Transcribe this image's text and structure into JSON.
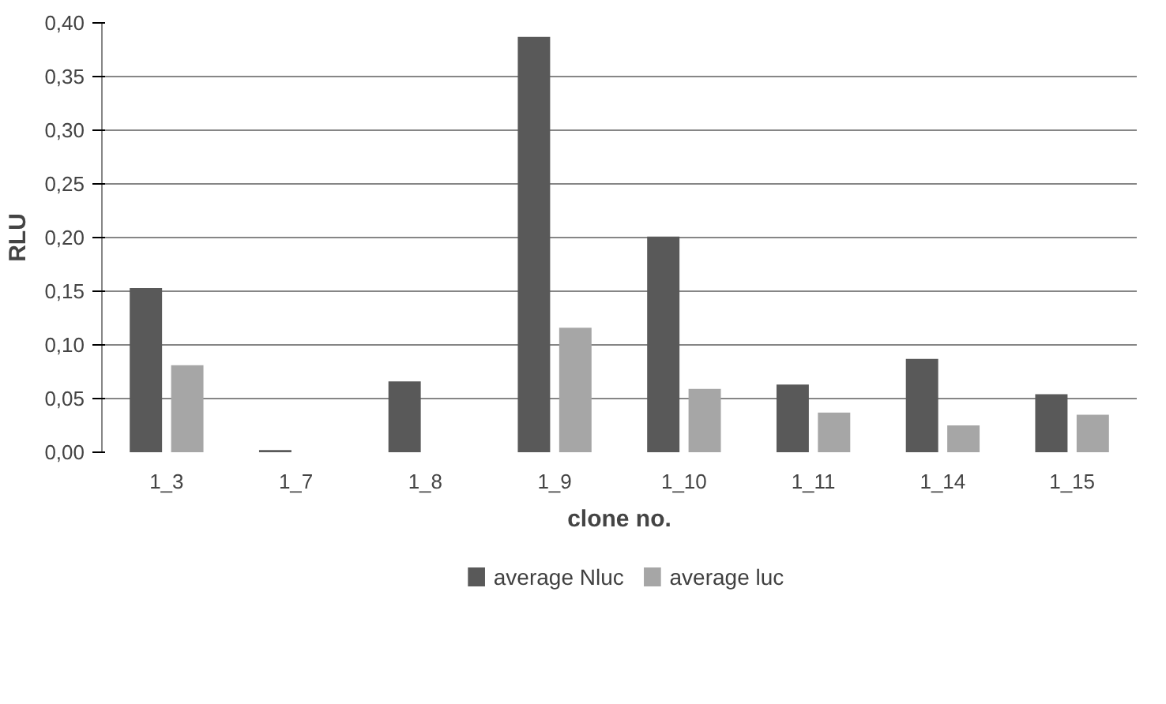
{
  "chart_data": {
    "type": "bar",
    "xlabel": "clone no.",
    "ylabel": "RLU",
    "categories": [
      "1_3",
      "1_7",
      "1_8",
      "1_9",
      "1_10",
      "1_11",
      "1_14",
      "1_15"
    ],
    "series": [
      {
        "name": "average Nluc",
        "color": "#595959",
        "values": [
          0.153,
          0.002,
          0.066,
          0.387,
          0.201,
          0.063,
          0.087,
          0.054
        ]
      },
      {
        "name": "average luc",
        "color": "#a6a6a6",
        "values": [
          0.081,
          0.0,
          0.0,
          0.116,
          0.059,
          0.037,
          0.025,
          0.035
        ]
      }
    ],
    "ylim": [
      0,
      0.4
    ],
    "yticks": [
      {
        "value": 0,
        "label": "0,00"
      },
      {
        "value": 0.05,
        "label": "0,05"
      },
      {
        "value": 0.1,
        "label": "0,10"
      },
      {
        "value": 0.15,
        "label": "0,15"
      },
      {
        "value": 0.2,
        "label": "0,20"
      },
      {
        "value": 0.25,
        "label": "0,25"
      },
      {
        "value": 0.3,
        "label": "0,30"
      },
      {
        "value": 0.35,
        "label": "0,35"
      },
      {
        "value": 0.4,
        "label": "0,40"
      }
    ],
    "grid": "y",
    "legend": "bottom"
  }
}
